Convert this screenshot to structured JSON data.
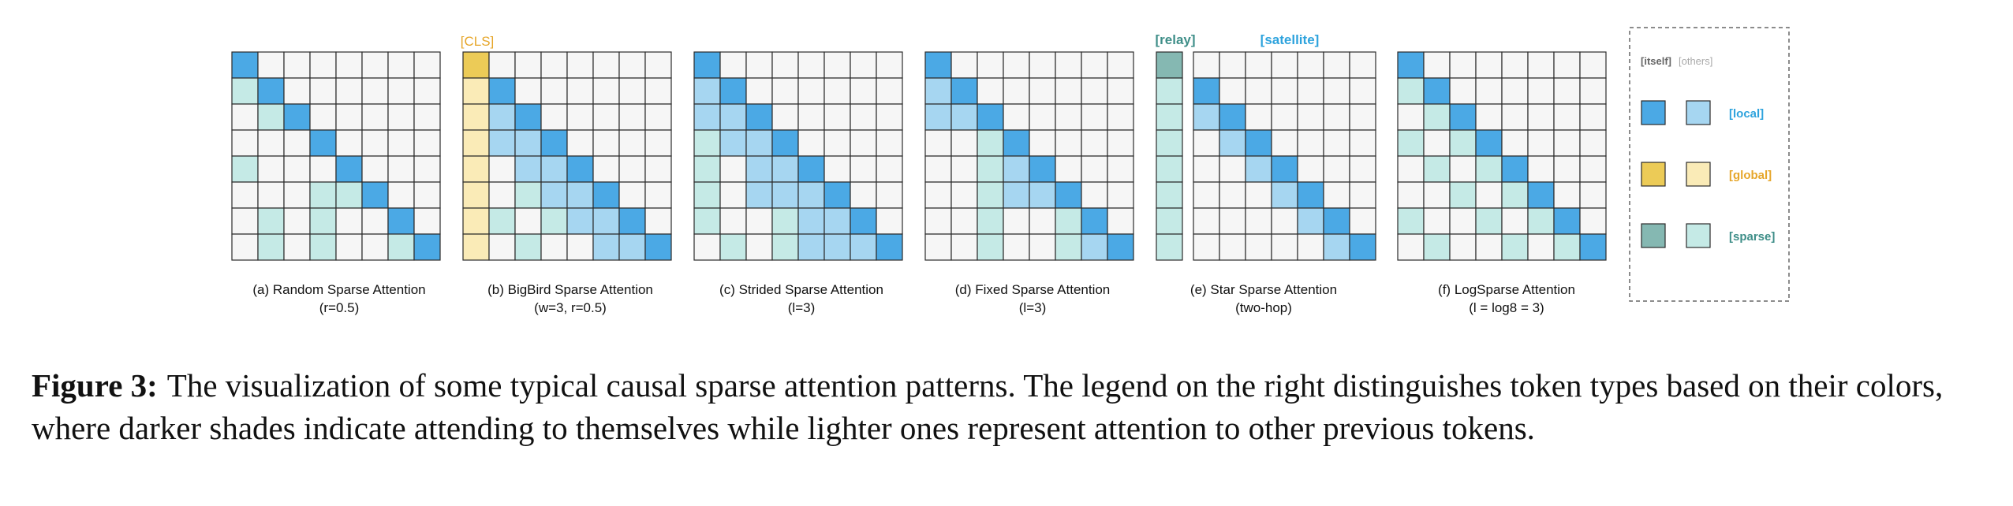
{
  "figure": {
    "panels": [
      {
        "id": "random",
        "caption_line1": "(a) Random Sparse Attention",
        "caption_line2": "(r=0.5)",
        "grid": [
          "L-------",
          "oL------",
          "-oL-----",
          "---L----",
          "o---L---",
          "---ooL--",
          "-o-o--L-",
          "-o-o--oL"
        ]
      },
      {
        "id": "bigbird",
        "top_label": "[CLS]",
        "caption_line1": "(b) BigBird Sparse Attention",
        "caption_line2": "(w=3, r=0.5)",
        "grid": [
          "G-------",
          "gL------",
          "glL-----",
          "gllL----",
          "g-llL---",
          "g-ollL--",
          "go-ollL-",
          "g-o--llL"
        ]
      },
      {
        "id": "strided",
        "caption_line1": "(c) Strided Sparse Attention",
        "caption_line2": "(l=3)",
        "grid": [
          "L-------",
          "lL------",
          "llL-----",
          "ollL----",
          "o-llL---",
          "o-lllL--",
          "o--ollL-",
          "-o-olllL"
        ]
      },
      {
        "id": "fixed",
        "caption_line1": "(d) Fixed Sparse Attention",
        "caption_line2": "(l=3)",
        "grid": [
          "L-------",
          "lL------",
          "llL-----",
          "--oL----",
          "--olL---",
          "--ollL--",
          "--o--oL-",
          "--o--olL"
        ]
      },
      {
        "id": "star",
        "top_label_relay": "[relay]",
        "top_label_satellite": "[satellite]",
        "caption_line1": "(e) Star Sparse Attention",
        "caption_line2": "(two-hop)",
        "grid": [
          "S-------",
          "sL------",
          "slL-----",
          "s-lL----",
          "s--lL---",
          "s---lL--",
          "s----lL-",
          "s-----lL"
        ]
      },
      {
        "id": "logsparse",
        "caption_line1": "(f) LogSparse Attention",
        "caption_line2": "(l = log8 = 3)",
        "grid": [
          "L-------",
          "oL------",
          "-oL-----",
          "o-oL----",
          "-o-oL---",
          "--o-oL--",
          "o--o-oL-",
          "-o--o-oL"
        ]
      }
    ],
    "legend": {
      "header_itself": "[itself]",
      "header_others": "[others]",
      "rows": [
        {
          "label": "[local]",
          "dark": "#4BA9E5",
          "light": "#A6D6F1",
          "text_color": "#2EA3DD"
        },
        {
          "label": "[global]",
          "dark": "#ECCB57",
          "light": "#FAEBB7",
          "text_color": "#E6A62A"
        },
        {
          "label": "[sparse]",
          "dark": "#85B8B2",
          "light": "#C5EAE6",
          "text_color": "#3E8E88"
        }
      ]
    },
    "colors": {
      "empty": "#F6F6F6",
      "local_self": "#4BA9E5",
      "local_other": "#A6D6F1",
      "global_self": "#ECCB57",
      "global_other": "#FAEBB7",
      "sparse_self": "#85B8B2",
      "sparse_other": "#C5EAE6",
      "cls_label": "#E6A62A",
      "relay_label": "#3E8E88",
      "satellite_label": "#2EA3DD"
    }
  },
  "caption": {
    "label": "Figure 3:",
    "text": "The visualization of some typical causal sparse attention patterns. The legend on the right distinguishes token types based on their colors, where darker shades indicate attending to themselves while lighter ones represent attention to other previous tokens."
  }
}
